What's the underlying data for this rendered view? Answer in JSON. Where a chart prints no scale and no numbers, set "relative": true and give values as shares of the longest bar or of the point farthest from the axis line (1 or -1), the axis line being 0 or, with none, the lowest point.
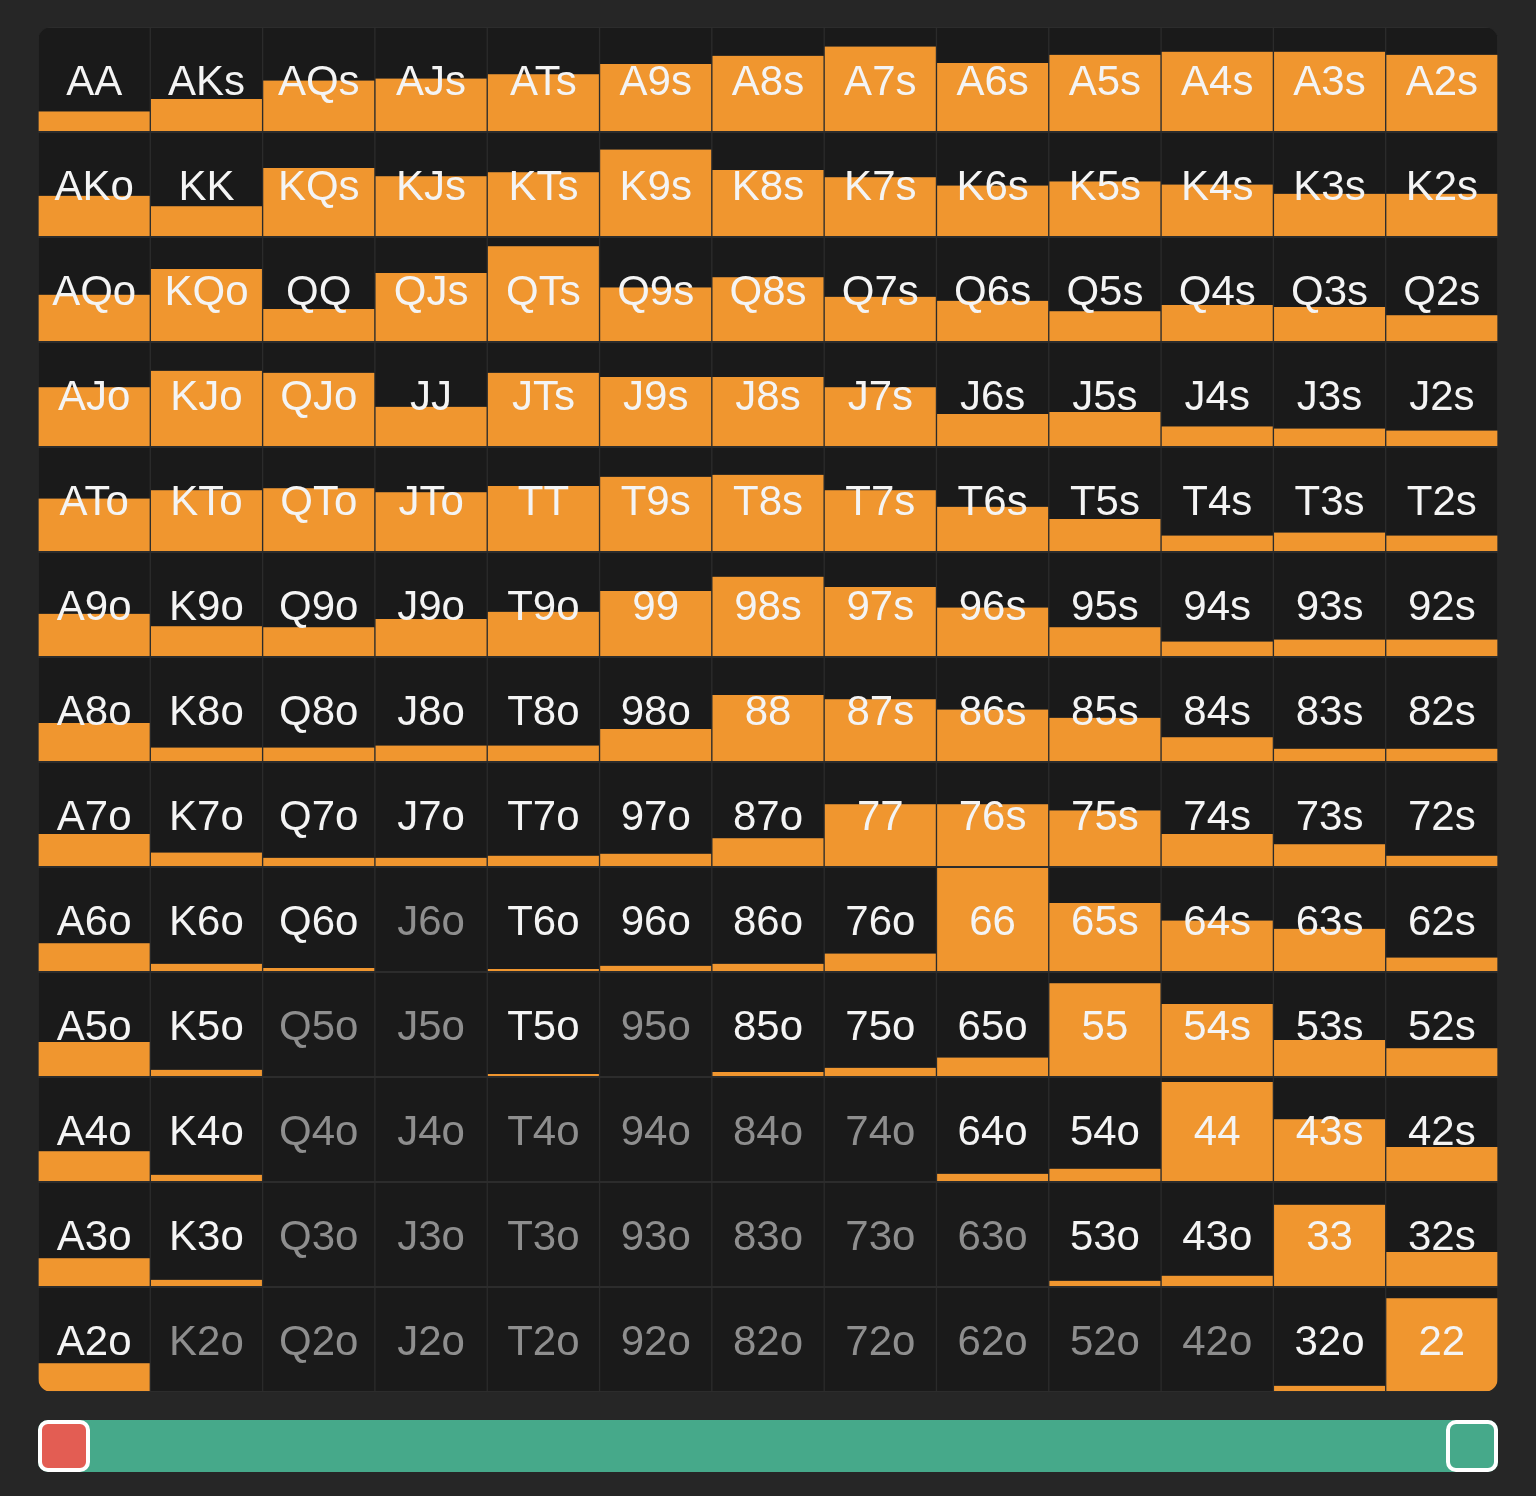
{
  "chart_data": [
    {
      "type": "bar",
      "stacked": true,
      "relative": true,
      "categories": [
        "AA",
        "AKs",
        "AQs",
        "AJs",
        "ATs",
        "A9s",
        "A8s",
        "A7s",
        "A6s",
        "A5s",
        "A4s",
        "A3s",
        "A2s"
      ],
      "series": [
        {
          "color": "#f0962f",
          "values": [
            0.19,
            0.31,
            0.49,
            0.51,
            0.55,
            0.65,
            0.73,
            0.82,
            0.66,
            0.74,
            0.77,
            0.77,
            0.74
          ]
        },
        {
          "color": "#1a1a1a",
          "values": [
            0.81,
            0.69,
            0.51,
            0.49,
            0.45,
            0.35,
            0.27,
            0.18,
            0.34,
            0.26,
            0.23,
            0.23,
            0.26
          ]
        }
      ]
    },
    {
      "type": "bar",
      "stacked": true,
      "relative": true,
      "categories": [
        "AKo",
        "KK",
        "KQs",
        "KJs",
        "KTs",
        "K9s",
        "K8s",
        "K7s",
        "K6s",
        "K5s",
        "K4s",
        "K3s",
        "K2s"
      ],
      "series": [
        {
          "color": "#f0962f",
          "values": [
            0.39,
            0.29,
            0.66,
            0.58,
            0.62,
            0.84,
            0.64,
            0.57,
            0.49,
            0.53,
            0.5,
            0.41,
            0.41
          ]
        },
        {
          "color": "#1a1a1a",
          "values": [
            0.61,
            0.71,
            0.34,
            0.42,
            0.38,
            0.16,
            0.36,
            0.43,
            0.51,
            0.47,
            0.5,
            0.59,
            0.59
          ]
        }
      ]
    },
    {
      "type": "bar",
      "stacked": true,
      "relative": true,
      "categories": [
        "AQo",
        "KQo",
        "QQ",
        "QJs",
        "QTs",
        "Q9s",
        "Q8s",
        "Q7s",
        "Q6s",
        "Q5s",
        "Q4s",
        "Q3s",
        "Q2s"
      ],
      "series": [
        {
          "color": "#f0962f",
          "values": [
            0.45,
            0.7,
            0.31,
            0.66,
            0.92,
            0.52,
            0.62,
            0.43,
            0.39,
            0.29,
            0.35,
            0.33,
            0.25
          ]
        },
        {
          "color": "#1a1a1a",
          "values": [
            0.55,
            0.3,
            0.69,
            0.34,
            0.08,
            0.48,
            0.38,
            0.57,
            0.61,
            0.71,
            0.65,
            0.67,
            0.75
          ]
        }
      ]
    },
    {
      "type": "bar",
      "stacked": true,
      "relative": true,
      "categories": [
        "AJo",
        "KJo",
        "QJo",
        "JJ",
        "JTs",
        "J9s",
        "J8s",
        "J7s",
        "J6s",
        "J5s",
        "J4s",
        "J3s",
        "J2s"
      ],
      "series": [
        {
          "color": "#f0962f",
          "values": [
            0.57,
            0.73,
            0.71,
            0.38,
            0.71,
            0.67,
            0.67,
            0.57,
            0.31,
            0.33,
            0.19,
            0.17,
            0.15
          ]
        },
        {
          "color": "#1a1a1a",
          "values": [
            0.43,
            0.27,
            0.29,
            0.62,
            0.29,
            0.33,
            0.33,
            0.43,
            0.69,
            0.67,
            0.81,
            0.83,
            0.85
          ]
        }
      ]
    },
    {
      "type": "bar",
      "stacked": true,
      "relative": true,
      "categories": [
        "ATo",
        "KTo",
        "QTo",
        "JTo",
        "TT",
        "T9s",
        "T8s",
        "T7s",
        "T6s",
        "T5s",
        "T4s",
        "T3s",
        "T2s"
      ],
      "series": [
        {
          "color": "#f0962f",
          "values": [
            0.51,
            0.59,
            0.61,
            0.57,
            0.63,
            0.72,
            0.74,
            0.59,
            0.43,
            0.31,
            0.15,
            0.18,
            0.15
          ]
        },
        {
          "color": "#1a1a1a",
          "values": [
            0.49,
            0.41,
            0.39,
            0.43,
            0.37,
            0.28,
            0.26,
            0.41,
            0.57,
            0.69,
            0.85,
            0.82,
            0.85
          ]
        }
      ]
    },
    {
      "type": "bar",
      "stacked": true,
      "relative": true,
      "categories": [
        "A9o",
        "K9o",
        "Q9o",
        "J9o",
        "T9o",
        "99",
        "98s",
        "97s",
        "96s",
        "95s",
        "94s",
        "93s",
        "92s"
      ],
      "series": [
        {
          "color": "#f0962f",
          "values": [
            0.41,
            0.29,
            0.28,
            0.36,
            0.43,
            0.63,
            0.77,
            0.67,
            0.47,
            0.28,
            0.14,
            0.16,
            0.16
          ]
        },
        {
          "color": "#1a1a1a",
          "values": [
            0.59,
            0.71,
            0.72,
            0.64,
            0.57,
            0.37,
            0.23,
            0.33,
            0.53,
            0.72,
            0.86,
            0.84,
            0.84
          ]
        }
      ]
    },
    {
      "type": "bar",
      "stacked": true,
      "relative": true,
      "categories": [
        "A8o",
        "K8o",
        "Q8o",
        "J8o",
        "T8o",
        "98o",
        "88",
        "87s",
        "86s",
        "85s",
        "84s",
        "83s",
        "82s"
      ],
      "series": [
        {
          "color": "#f0962f",
          "values": [
            0.37,
            0.13,
            0.13,
            0.15,
            0.15,
            0.31,
            0.64,
            0.6,
            0.5,
            0.42,
            0.23,
            0.12,
            0.12
          ]
        },
        {
          "color": "#1a1a1a",
          "values": [
            0.63,
            0.87,
            0.87,
            0.85,
            0.85,
            0.69,
            0.36,
            0.4,
            0.5,
            0.58,
            0.77,
            0.88,
            0.88
          ]
        }
      ]
    },
    {
      "type": "bar",
      "stacked": true,
      "relative": true,
      "categories": [
        "A7o",
        "K7o",
        "Q7o",
        "J7o",
        "T7o",
        "97o",
        "87o",
        "77",
        "76s",
        "75s",
        "74s",
        "73s",
        "72s"
      ],
      "series": [
        {
          "color": "#f0962f",
          "values": [
            0.31,
            0.13,
            0.08,
            0.08,
            0.1,
            0.12,
            0.27,
            0.6,
            0.6,
            0.54,
            0.31,
            0.21,
            0.1
          ]
        },
        {
          "color": "#1a1a1a",
          "values": [
            0.69,
            0.87,
            0.92,
            0.92,
            0.9,
            0.88,
            0.73,
            0.4,
            0.4,
            0.46,
            0.69,
            0.79,
            0.9
          ]
        }
      ]
    },
    {
      "type": "bar",
      "stacked": true,
      "relative": true,
      "categories": [
        "A6o",
        "K6o",
        "Q6o",
        "J6o",
        "T6o",
        "96o",
        "86o",
        "76o",
        "66",
        "65s",
        "64s",
        "63s",
        "62s"
      ],
      "series": [
        {
          "color": "#f0962f",
          "values": [
            0.27,
            0.07,
            0.03,
            0,
            0.02,
            0.05,
            0.07,
            0.17,
            1,
            0.66,
            0.49,
            0.41,
            0.13
          ]
        },
        {
          "color": "#1a1a1a",
          "values": [
            0.73,
            0.93,
            0.97,
            1,
            0.98,
            0.95,
            0.93,
            0.83,
            0,
            0.34,
            0.51,
            0.59,
            0.87
          ]
        }
      ]
    },
    {
      "type": "bar",
      "stacked": true,
      "relative": true,
      "categories": [
        "A5o",
        "K5o",
        "Q5o",
        "J5o",
        "T5o",
        "95o",
        "85o",
        "75o",
        "65o",
        "55",
        "54s",
        "53s",
        "52s"
      ],
      "series": [
        {
          "color": "#f0962f",
          "values": [
            0.33,
            0.06,
            0,
            0,
            0.02,
            0,
            0.04,
            0.08,
            0.18,
            0.9,
            0.7,
            0.35,
            0.27
          ]
        },
        {
          "color": "#1a1a1a",
          "values": [
            0.67,
            0.94,
            1,
            1,
            0.98,
            1,
            0.96,
            0.92,
            0.82,
            0.1,
            0.3,
            0.65,
            0.73
          ]
        }
      ]
    },
    {
      "type": "bar",
      "stacked": true,
      "relative": true,
      "categories": [
        "A4o",
        "K4o",
        "Q4o",
        "J4o",
        "T4o",
        "94o",
        "84o",
        "74o",
        "64o",
        "54o",
        "44",
        "43s",
        "42s"
      ],
      "series": [
        {
          "color": "#f0962f",
          "values": [
            0.29,
            0.06,
            0,
            0,
            0,
            0,
            0,
            0,
            0.07,
            0.12,
            0.96,
            0.6,
            0.33
          ]
        },
        {
          "color": "#1a1a1a",
          "values": [
            0.71,
            0.94,
            1,
            1,
            1,
            1,
            1,
            1,
            0.93,
            0.88,
            0.04,
            0.4,
            0.67
          ]
        }
      ]
    },
    {
      "type": "bar",
      "stacked": true,
      "relative": true,
      "categories": [
        "A3o",
        "K3o",
        "Q3o",
        "J3o",
        "T3o",
        "93o",
        "83o",
        "73o",
        "63o",
        "53o",
        "43o",
        "33",
        "32s"
      ],
      "series": [
        {
          "color": "#f0962f",
          "values": [
            0.27,
            0.06,
            0,
            0,
            0,
            0,
            0,
            0,
            0,
            0.05,
            0.1,
            0.79,
            0.33
          ]
        },
        {
          "color": "#1a1a1a",
          "values": [
            0.73,
            0.94,
            1,
            1,
            1,
            1,
            1,
            1,
            1,
            0.95,
            0.9,
            0.21,
            0.67
          ]
        }
      ]
    },
    {
      "type": "bar",
      "stacked": true,
      "relative": true,
      "categories": [
        "A2o",
        "K2o",
        "Q2o",
        "J2o",
        "T2o",
        "92o",
        "82o",
        "72o",
        "62o",
        "52o",
        "42o",
        "32o",
        "22"
      ],
      "series": [
        {
          "color": "#f0962f",
          "values": [
            0.27,
            0,
            0,
            0,
            0,
            0,
            0,
            0,
            0,
            0,
            0,
            0.05,
            0.9
          ]
        },
        {
          "color": "#1a1a1a",
          "values": [
            0.73,
            1,
            1,
            1,
            1,
            1,
            1,
            1,
            1,
            1,
            1,
            0.95,
            0.1
          ]
        }
      ]
    }
  ]
}
